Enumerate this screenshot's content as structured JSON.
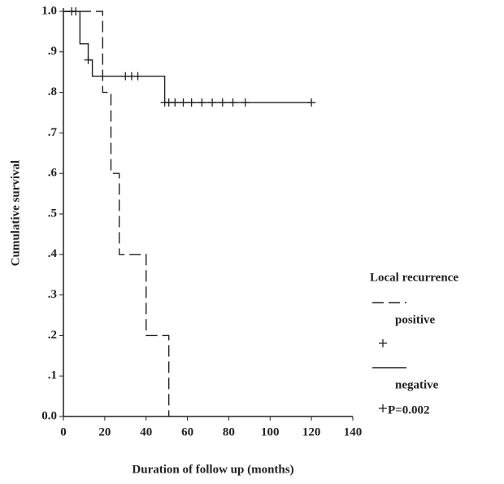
{
  "chart_data": {
    "type": "km",
    "x_label": "Duration of follow up (months)",
    "y_label": "Cumulative survival",
    "legend_title": "Local recurrence",
    "annotation": "P=0.002",
    "xlim": [
      0,
      140
    ],
    "xticks": [
      0,
      20,
      40,
      60,
      80,
      100,
      120,
      140
    ],
    "ylim": [
      0,
      1
    ],
    "yticks": [
      {
        "value": 0,
        "label": "0.0"
      },
      {
        "value": 0.1,
        "label": ".1"
      },
      {
        "value": 0.2,
        "label": ".2"
      },
      {
        "value": 0.3,
        "label": ".3"
      },
      {
        "value": 0.4,
        "label": ".4"
      },
      {
        "value": 0.5,
        "label": ".5"
      },
      {
        "value": 0.6,
        "label": ".6"
      },
      {
        "value": 0.7,
        "label": ".7"
      },
      {
        "value": 0.8,
        "label": ".8"
      },
      {
        "value": 0.9,
        "label": ".9"
      },
      {
        "value": 1,
        "label": "1.0"
      }
    ],
    "series": [
      {
        "name": "positive",
        "color": "#222",
        "dashed": true,
        "x": [
          0,
          19,
          19,
          23,
          23,
          27,
          27,
          40,
          40,
          51,
          51
        ],
        "values": [
          1,
          1,
          0.8,
          0.8,
          0.6,
          0.6,
          0.4,
          0.4,
          0.2,
          0.2,
          0
        ],
        "censored_x": [],
        "censored_values": []
      },
      {
        "name": "negative",
        "color": "#222",
        "dashed": false,
        "x": [
          0,
          8,
          8,
          12,
          12,
          14,
          14,
          49,
          49,
          120
        ],
        "values": [
          1,
          1,
          0.92,
          0.92,
          0.88,
          0.88,
          0.84,
          0.84,
          0.775,
          0.775
        ],
        "censored_x": [
          4,
          6,
          12,
          30,
          33,
          36,
          49,
          51,
          54,
          58,
          62,
          67,
          72,
          77,
          82,
          88,
          120
        ],
        "censored_values": [
          1,
          1,
          0.88,
          0.84,
          0.84,
          0.84,
          0.775,
          0.775,
          0.775,
          0.775,
          0.775,
          0.775,
          0.775,
          0.775,
          0.775,
          0.775,
          0.775
        ]
      }
    ]
  }
}
